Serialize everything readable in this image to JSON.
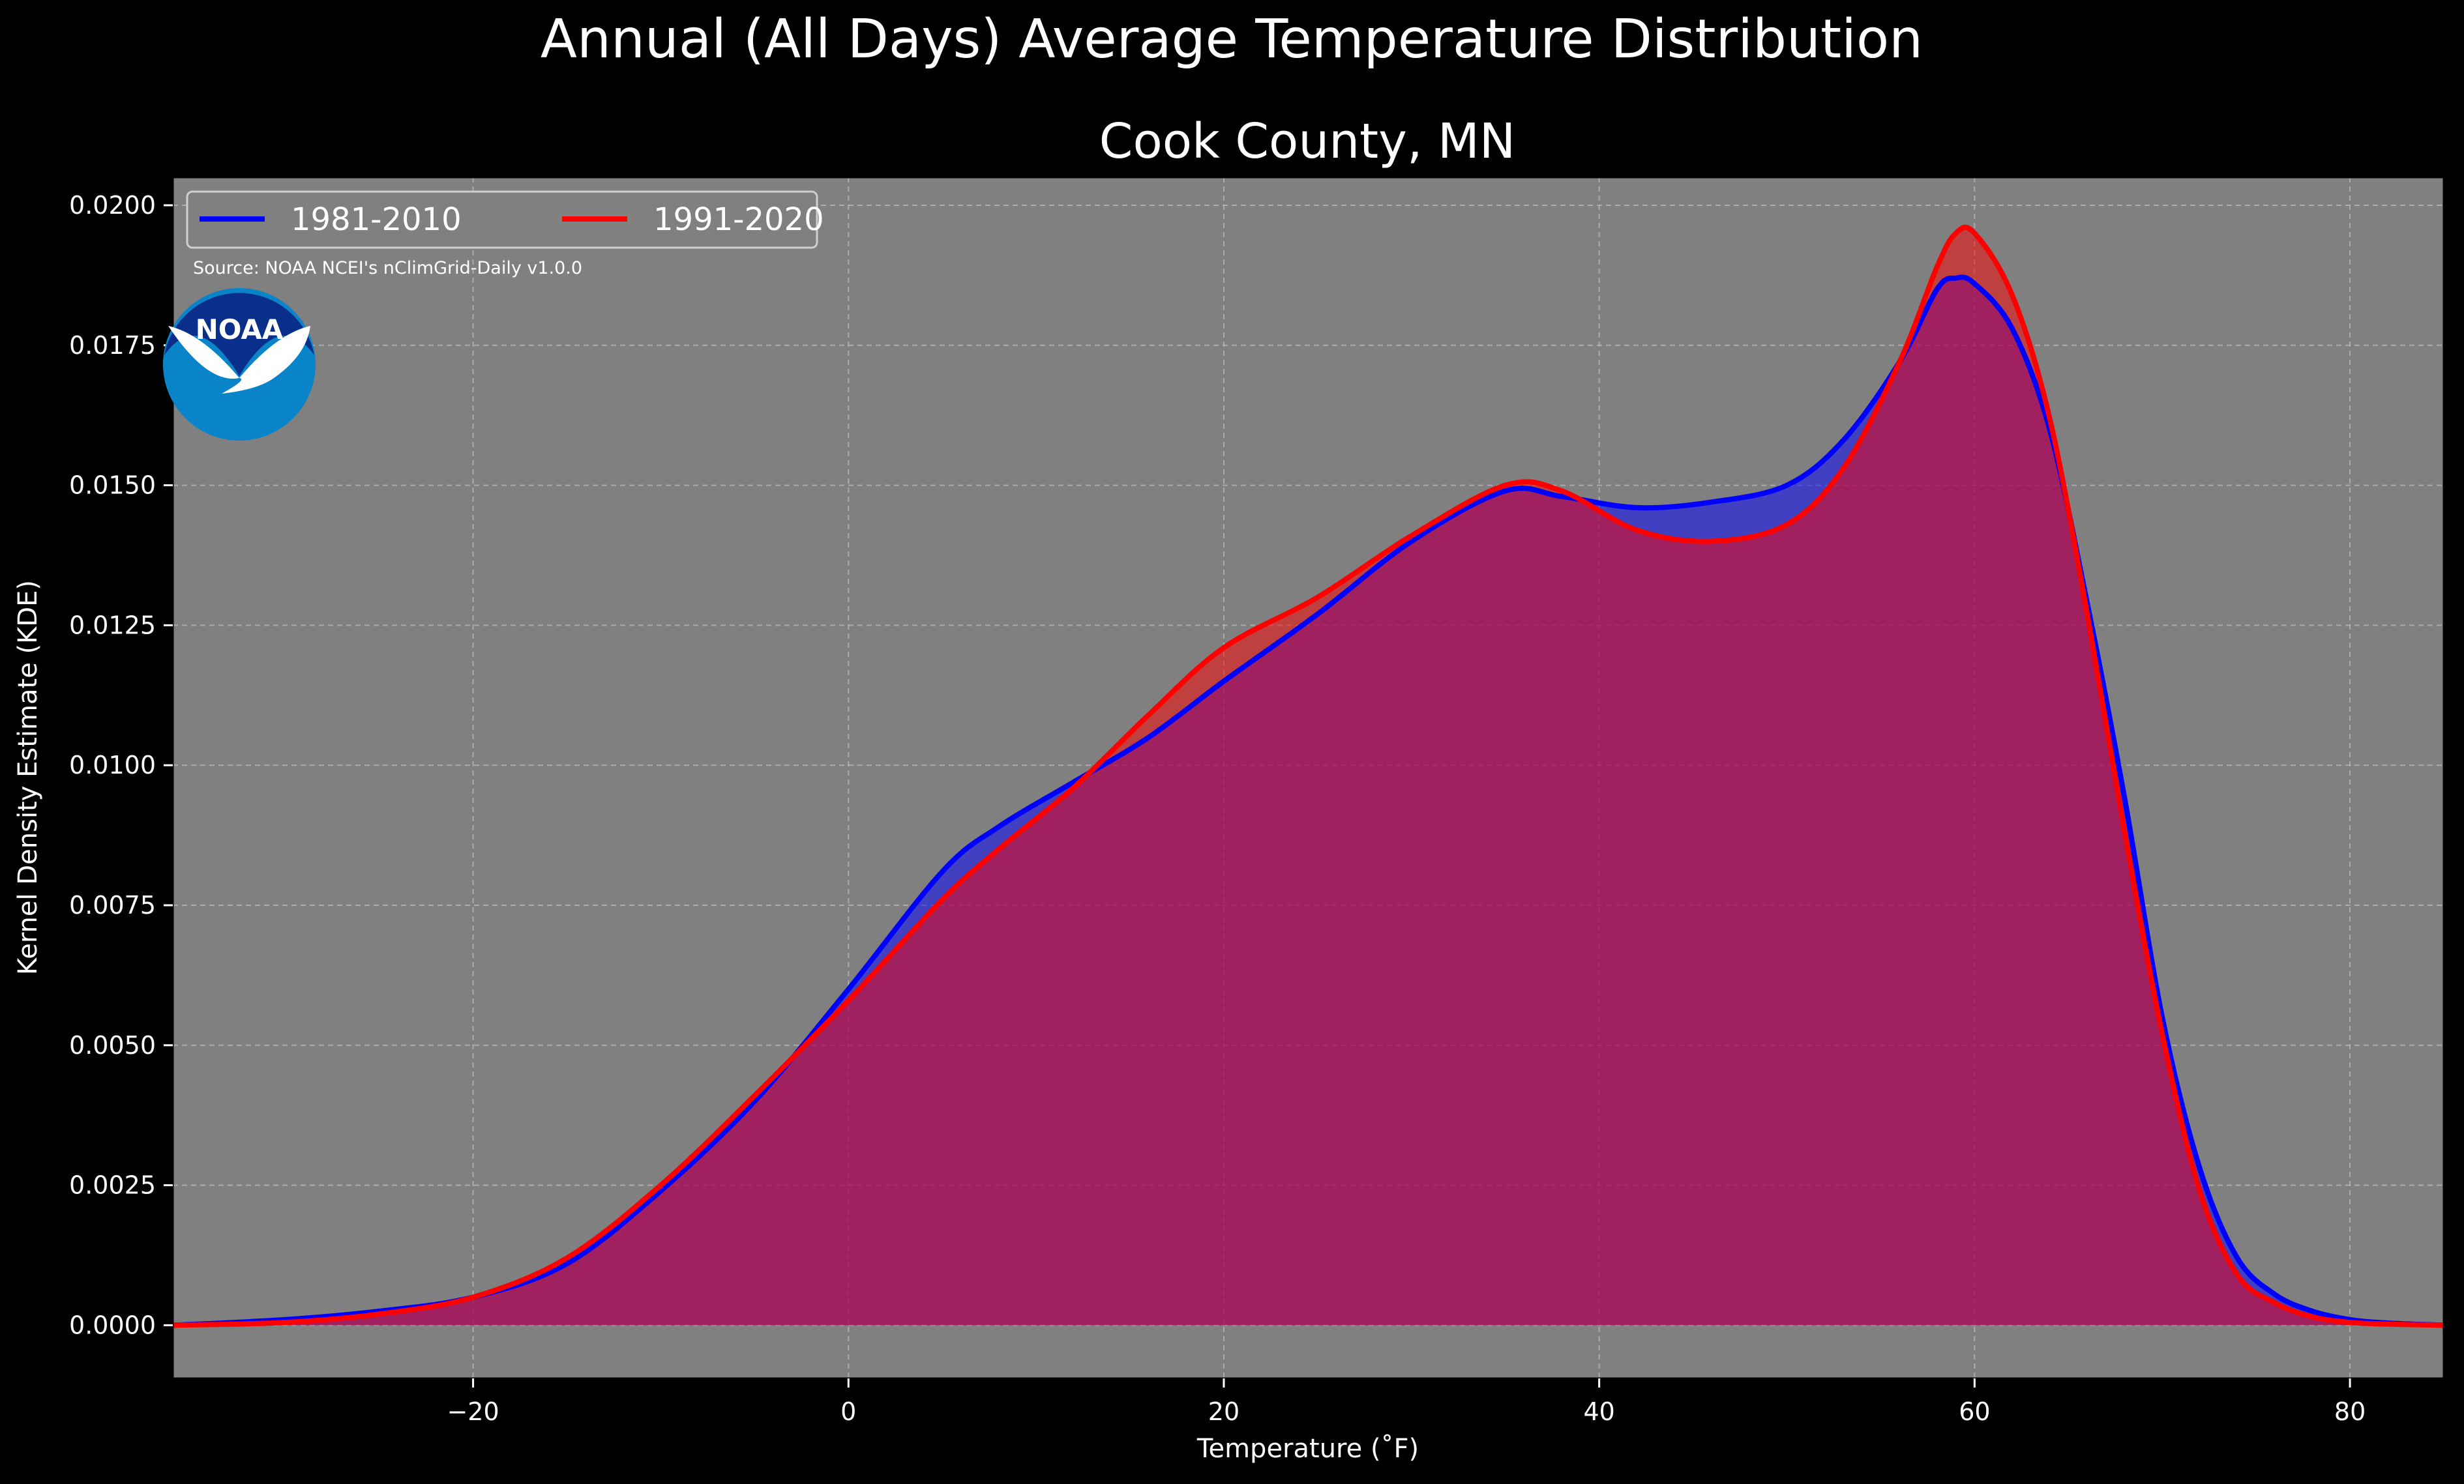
{
  "suptitle": "Annual (All Days) Average Temperature Distribution",
  "source": "Source: NOAA NCEI's nClimGrid-Daily v1.0.0",
  "logo_text": "NOAA",
  "colors": {
    "background": "#000000",
    "axes_face": "#808080",
    "grid": "#c8c8c8",
    "series_1981": "#0000ff",
    "series_1991": "#ff0000",
    "text": "#ffffff",
    "logo_dark": "#0a2f8a",
    "logo_light": "#0a84c8"
  },
  "chart_data": {
    "type": "area",
    "title": "Cook County, MN",
    "xlabel": "Temperature (˚F)",
    "ylabel": "Kernel Density Estimate (KDE)",
    "xlim": [
      -36,
      85
    ],
    "ylim": [
      -0.00095,
      0.0205
    ],
    "xticks": [
      -20,
      0,
      20,
      40,
      60,
      80
    ],
    "xtick_labels": [
      "−20",
      "0",
      "20",
      "40",
      "60",
      "80"
    ],
    "yticks": [
      0,
      0.0025,
      0.005,
      0.0075,
      0.01,
      0.0125,
      0.015,
      0.0175,
      0.02
    ],
    "ytick_labels": [
      "0.0000",
      "0.0025",
      "0.0050",
      "0.0075",
      "0.0100",
      "0.0125",
      "0.0150",
      "0.0175",
      "0.0200"
    ],
    "grid": true,
    "legend_position": "top-left",
    "x": [
      -36,
      -30,
      -25,
      -20,
      -15,
      -10,
      -5,
      0,
      5,
      8,
      12,
      16,
      20,
      25,
      30,
      35,
      38,
      42,
      46,
      50,
      53,
      56,
      58,
      59,
      60,
      62,
      64,
      66,
      68,
      70,
      72,
      74,
      76,
      78,
      80,
      82,
      85
    ],
    "series": [
      {
        "name": "1981-2010",
        "values": [
          0.0,
          0.0001,
          0.00025,
          0.0005,
          0.0011,
          0.0024,
          0.004,
          0.006,
          0.0081,
          0.0089,
          0.0097,
          0.0105,
          0.0115,
          0.0127,
          0.014,
          0.0149,
          0.0148,
          0.0146,
          0.0147,
          0.015,
          0.0158,
          0.0172,
          0.0185,
          0.0187,
          0.0186,
          0.0178,
          0.016,
          0.0129,
          0.0094,
          0.0055,
          0.0028,
          0.0012,
          0.00055,
          0.00025,
          0.0001,
          4e-05,
          0.0
        ]
      },
      {
        "name": "1991-2020",
        "values": [
          0.0,
          5e-05,
          0.0002,
          0.0005,
          0.0012,
          0.0025,
          0.0041,
          0.0058,
          0.0076,
          0.0085,
          0.0096,
          0.0109,
          0.0121,
          0.013,
          0.0141,
          0.015,
          0.0149,
          0.0142,
          0.014,
          0.0143,
          0.0153,
          0.0172,
          0.0189,
          0.0195,
          0.0195,
          0.0184,
          0.0162,
          0.0127,
          0.0088,
          0.0052,
          0.0024,
          0.0009,
          0.0004,
          0.00015,
          5e-05,
          2e-05,
          0.0
        ]
      }
    ]
  }
}
